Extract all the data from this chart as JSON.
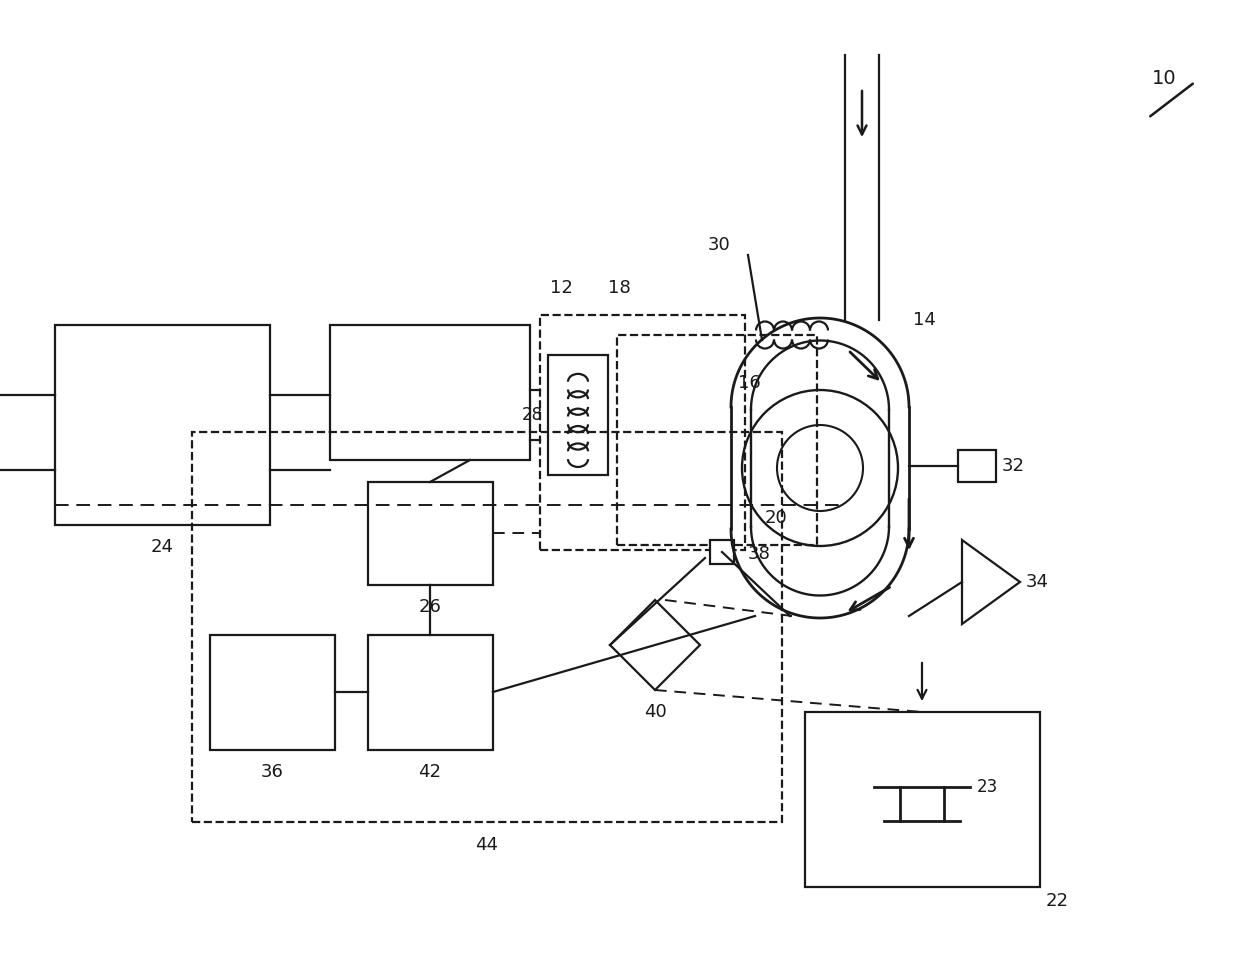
{
  "bg_color": "#ffffff",
  "line_color": "#1a1a1a",
  "label_10": "10",
  "label_12": "12",
  "label_14": "14",
  "label_16": "16",
  "label_18": "18",
  "label_20": "20",
  "label_22": "22",
  "label_23": "23",
  "label_24": "24",
  "label_26": "26",
  "label_28": "28",
  "label_30": "30",
  "label_32": "32",
  "label_34": "34",
  "label_36": "36",
  "label_38": "38",
  "label_40": "40",
  "label_42": "42",
  "label_44": "44"
}
